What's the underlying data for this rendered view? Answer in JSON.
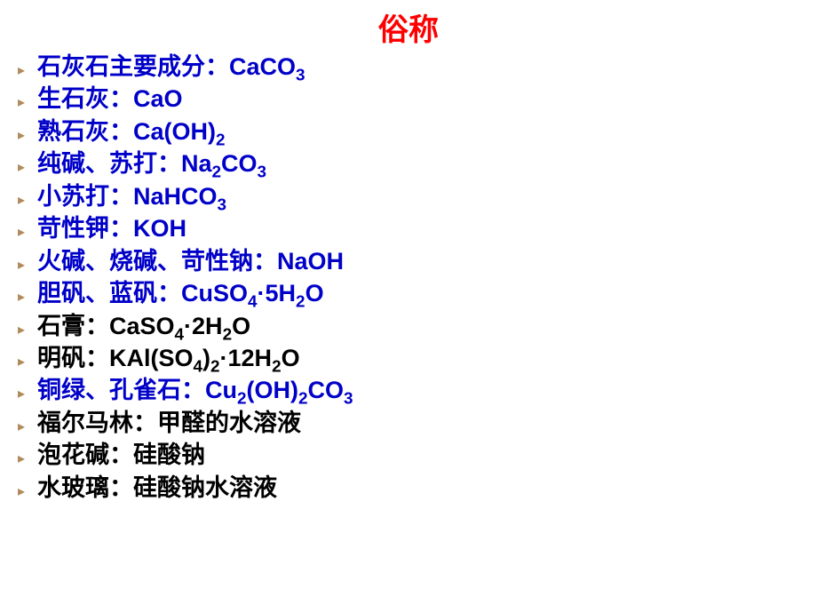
{
  "title": {
    "text": "俗称",
    "color": "#ff0000",
    "fontsize": 34
  },
  "bullet_color": "#b08a5a",
  "item_fontsize": 27,
  "items": [
    {
      "color": "#0000c8",
      "parts": [
        {
          "t": "石灰石主要成分：CaCO"
        },
        {
          "t": "3",
          "sub": true
        }
      ]
    },
    {
      "color": "#0000c8",
      "parts": [
        {
          "t": "生石灰：CaO"
        }
      ]
    },
    {
      "color": "#0000c8",
      "parts": [
        {
          "t": "熟石灰：Ca(OH)"
        },
        {
          "t": "2",
          "sub": true
        }
      ]
    },
    {
      "color": "#0000c8",
      "parts": [
        {
          "t": "纯碱、苏打：Na"
        },
        {
          "t": "2",
          "sub": true
        },
        {
          "t": "CO"
        },
        {
          "t": "3",
          "sub": true
        }
      ]
    },
    {
      "color": "#0000c8",
      "parts": [
        {
          "t": "小苏打：NaHCO"
        },
        {
          "t": "3",
          "sub": true
        }
      ]
    },
    {
      "color": "#0000c8",
      "parts": [
        {
          "t": "苛性钾：KOH"
        }
      ]
    },
    {
      "color": "#0000c8",
      "parts": [
        {
          "t": "火碱、烧碱、苛性钠：NaOH"
        }
      ]
    },
    {
      "color": "#0000c8",
      "parts": [
        {
          "t": "胆矾、蓝矾：CuSO"
        },
        {
          "t": "4",
          "sub": true
        },
        {
          "t": "·5H"
        },
        {
          "t": "2",
          "sub": true
        },
        {
          "t": "O"
        }
      ]
    },
    {
      "color": "#000000",
      "parts": [
        {
          "t": "石膏：CaSO"
        },
        {
          "t": "4",
          "sub": true
        },
        {
          "t": "·2H"
        },
        {
          "t": "2",
          "sub": true
        },
        {
          "t": "O"
        }
      ]
    },
    {
      "color": "#000000",
      "parts": [
        {
          "t": "明矾：KAl(SO"
        },
        {
          "t": "4",
          "sub": true
        },
        {
          "t": ")"
        },
        {
          "t": "2",
          "sub": true
        },
        {
          "t": "·12H"
        },
        {
          "t": "2",
          "sub": true
        },
        {
          "t": "O"
        }
      ]
    },
    {
      "color": "#0000c8",
      "parts": [
        {
          "t": "铜绿、孔雀石：Cu"
        },
        {
          "t": "2",
          "sub": true
        },
        {
          "t": "(OH)"
        },
        {
          "t": "2",
          "sub": true
        },
        {
          "t": "CO"
        },
        {
          "t": "3",
          "sub": true
        }
      ]
    },
    {
      "color": "#000000",
      "parts": [
        {
          "t": "福尔马林：甲醛的水溶液"
        }
      ]
    },
    {
      "color": "#000000",
      "parts": [
        {
          "t": "泡花碱：硅酸钠"
        }
      ]
    },
    {
      "color": "#000000",
      "parts": [
        {
          "t": "水玻璃：硅酸钠水溶液"
        }
      ]
    }
  ]
}
